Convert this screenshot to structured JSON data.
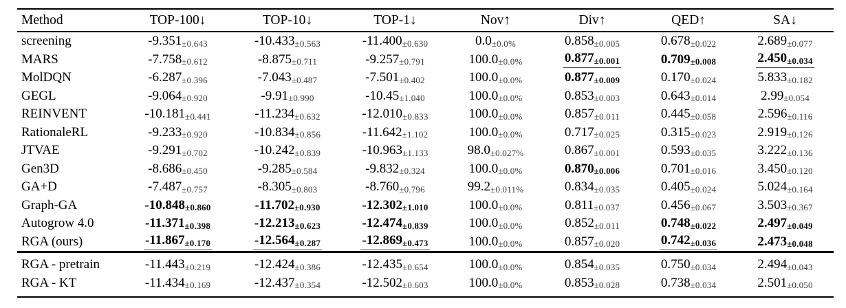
{
  "table": {
    "columns": [
      {
        "key": "method",
        "label": "Method"
      },
      {
        "key": "top100",
        "label": "TOP-100↓"
      },
      {
        "key": "top10",
        "label": "TOP-10↓"
      },
      {
        "key": "top1",
        "label": "TOP-1↓"
      },
      {
        "key": "nov",
        "label": "Nov↑"
      },
      {
        "key": "div",
        "label": "Div↑"
      },
      {
        "key": "qed",
        "label": "QED↑"
      },
      {
        "key": "sa",
        "label": "SA↓"
      }
    ],
    "main_rows": [
      {
        "method": "screening",
        "cells": [
          {
            "value": "-9.351",
            "pm": "0.643",
            "bold": false,
            "underline": false
          },
          {
            "value": "-10.433",
            "pm": "0.563",
            "bold": false,
            "underline": false
          },
          {
            "value": "-11.400",
            "pm": "0.630",
            "bold": false,
            "underline": false
          },
          {
            "value": "0.0",
            "pm": "0.0%",
            "bold": false,
            "underline": false
          },
          {
            "value": "0.858",
            "pm": "0.005",
            "bold": false,
            "underline": false
          },
          {
            "value": "0.678",
            "pm": "0.022",
            "bold": false,
            "underline": false
          },
          {
            "value": "2.689",
            "pm": "0.077",
            "bold": false,
            "underline": false
          }
        ]
      },
      {
        "method": "MARS",
        "cells": [
          {
            "value": "-7.758",
            "pm": "0.612",
            "bold": false,
            "underline": false
          },
          {
            "value": "-8.875",
            "pm": "0.711",
            "bold": false,
            "underline": false
          },
          {
            "value": "-9.257",
            "pm": "0.791",
            "bold": false,
            "underline": false
          },
          {
            "value": "100.0",
            "pm": "0.0%",
            "bold": false,
            "underline": false
          },
          {
            "value": "0.877",
            "pm": "0.001",
            "bold": true,
            "underline": true
          },
          {
            "value": "0.709",
            "pm": "0.008",
            "bold": true,
            "underline": false
          },
          {
            "value": "2.450",
            "pm": "0.034",
            "bold": true,
            "underline": true
          }
        ]
      },
      {
        "method": "MolDQN",
        "cells": [
          {
            "value": "-6.287",
            "pm": "0.396",
            "bold": false,
            "underline": false
          },
          {
            "value": "-7.043",
            "pm": "0.487",
            "bold": false,
            "underline": false
          },
          {
            "value": "-7.501",
            "pm": "0.402",
            "bold": false,
            "underline": false
          },
          {
            "value": "100.0",
            "pm": "0.0%",
            "bold": false,
            "underline": false
          },
          {
            "value": "0.877",
            "pm": "0.009",
            "bold": true,
            "underline": false
          },
          {
            "value": "0.170",
            "pm": "0.024",
            "bold": false,
            "underline": false
          },
          {
            "value": "5.833",
            "pm": "0.182",
            "bold": false,
            "underline": false
          }
        ]
      },
      {
        "method": "GEGL",
        "cells": [
          {
            "value": "-9.064",
            "pm": "0.920",
            "bold": false,
            "underline": false
          },
          {
            "value": "-9.91",
            "pm": "0.990",
            "bold": false,
            "underline": false
          },
          {
            "value": "-10.45",
            "pm": "1.040",
            "bold": false,
            "underline": false
          },
          {
            "value": "100.0",
            "pm": "0.0%",
            "bold": false,
            "underline": false
          },
          {
            "value": "0.853",
            "pm": "0.003",
            "bold": false,
            "underline": false
          },
          {
            "value": "0.643",
            "pm": "0.014",
            "bold": false,
            "underline": false
          },
          {
            "value": "2.99",
            "pm": "0.054",
            "bold": false,
            "underline": false
          }
        ]
      },
      {
        "method": "REINVENT",
        "cells": [
          {
            "value": "-10.181",
            "pm": "0.441",
            "bold": false,
            "underline": false
          },
          {
            "value": "-11.234",
            "pm": "0.632",
            "bold": false,
            "underline": false
          },
          {
            "value": "-12.010",
            "pm": "0.833",
            "bold": false,
            "underline": false
          },
          {
            "value": "100.0",
            "pm": "0.0%",
            "bold": false,
            "underline": false
          },
          {
            "value": "0.857",
            "pm": "0.011",
            "bold": false,
            "underline": false
          },
          {
            "value": "0.445",
            "pm": "0.058",
            "bold": false,
            "underline": false
          },
          {
            "value": "2.596",
            "pm": "0.116",
            "bold": false,
            "underline": false
          }
        ]
      },
      {
        "method": "RationaleRL",
        "cells": [
          {
            "value": "-9.233",
            "pm": "0.920",
            "bold": false,
            "underline": false
          },
          {
            "value": "-10.834",
            "pm": "0.856",
            "bold": false,
            "underline": false
          },
          {
            "value": "-11.642",
            "pm": "1.102",
            "bold": false,
            "underline": false
          },
          {
            "value": "100.0",
            "pm": "0.0%",
            "bold": false,
            "underline": false
          },
          {
            "value": "0.717",
            "pm": "0.025",
            "bold": false,
            "underline": false
          },
          {
            "value": "0.315",
            "pm": "0.023",
            "bold": false,
            "underline": false
          },
          {
            "value": "2.919",
            "pm": "0.126",
            "bold": false,
            "underline": false
          }
        ]
      },
      {
        "method": "JTVAE",
        "cells": [
          {
            "value": "-9.291",
            "pm": "0.702",
            "bold": false,
            "underline": false
          },
          {
            "value": "-10.242",
            "pm": "0.839",
            "bold": false,
            "underline": false
          },
          {
            "value": "-10.963",
            "pm": "1.133",
            "bold": false,
            "underline": false
          },
          {
            "value": "98.0",
            "pm": "0.027%",
            "bold": false,
            "underline": false
          },
          {
            "value": "0.867",
            "pm": "0.001",
            "bold": false,
            "underline": false
          },
          {
            "value": "0.593",
            "pm": "0.035",
            "bold": false,
            "underline": false
          },
          {
            "value": "3.222",
            "pm": "0.136",
            "bold": false,
            "underline": false
          }
        ]
      },
      {
        "method": "Gen3D",
        "cells": [
          {
            "value": "-8.686",
            "pm": "0.450",
            "bold": false,
            "underline": false
          },
          {
            "value": "-9.285",
            "pm": "0.584",
            "bold": false,
            "underline": false
          },
          {
            "value": "-9.832",
            "pm": "0.324",
            "bold": false,
            "underline": false
          },
          {
            "value": "100.0",
            "pm": "0.0%",
            "bold": false,
            "underline": false
          },
          {
            "value": "0.870",
            "pm": "0.006",
            "bold": true,
            "underline": false
          },
          {
            "value": "0.701",
            "pm": "0.016",
            "bold": false,
            "underline": false
          },
          {
            "value": "3.450",
            "pm": "0.120",
            "bold": false,
            "underline": false
          }
        ]
      },
      {
        "method": "GA+D",
        "cells": [
          {
            "value": "-7.487",
            "pm": "0.757",
            "bold": false,
            "underline": false
          },
          {
            "value": "-8.305",
            "pm": "0.803",
            "bold": false,
            "underline": false
          },
          {
            "value": "-8.760",
            "pm": "0.796",
            "bold": false,
            "underline": false
          },
          {
            "value": "99.2",
            "pm": "0.011%",
            "bold": false,
            "underline": false
          },
          {
            "value": "0.834",
            "pm": "0.035",
            "bold": false,
            "underline": false
          },
          {
            "value": "0.405",
            "pm": "0.024",
            "bold": false,
            "underline": false
          },
          {
            "value": "5.024",
            "pm": "0.164",
            "bold": false,
            "underline": false
          }
        ]
      },
      {
        "method": "Graph-GA",
        "cells": [
          {
            "value": "-10.848",
            "pm": "0.860",
            "bold": true,
            "underline": false
          },
          {
            "value": "-11.702",
            "pm": "0.930",
            "bold": true,
            "underline": false
          },
          {
            "value": "-12.302",
            "pm": "1.010",
            "bold": true,
            "underline": false
          },
          {
            "value": "100.0",
            "pm": "0.0%",
            "bold": false,
            "underline": false
          },
          {
            "value": "0.811",
            "pm": "0.037",
            "bold": false,
            "underline": false
          },
          {
            "value": "0.456",
            "pm": "0.067",
            "bold": false,
            "underline": false
          },
          {
            "value": "3.503",
            "pm": "0.367",
            "bold": false,
            "underline": false
          }
        ]
      },
      {
        "method": "Autogrow 4.0",
        "cells": [
          {
            "value": "-11.371",
            "pm": "0.398",
            "bold": true,
            "underline": false
          },
          {
            "value": "-12.213",
            "pm": "0.623",
            "bold": true,
            "underline": false
          },
          {
            "value": "-12.474",
            "pm": "0.839",
            "bold": true,
            "underline": false
          },
          {
            "value": "100.0",
            "pm": "0.0%",
            "bold": false,
            "underline": false
          },
          {
            "value": "0.852",
            "pm": "0.011",
            "bold": false,
            "underline": false
          },
          {
            "value": "0.748",
            "pm": "0.022",
            "bold": true,
            "underline": false
          },
          {
            "value": "2.497",
            "pm": "0.049",
            "bold": true,
            "underline": false
          }
        ]
      },
      {
        "method": "RGA (ours)",
        "cells": [
          {
            "value": "-11.867",
            "pm": "0.170",
            "bold": true,
            "underline": true
          },
          {
            "value": "-12.564",
            "pm": "0.287",
            "bold": true,
            "underline": true
          },
          {
            "value": "-12.869",
            "pm": "0.473",
            "bold": true,
            "underline": true
          },
          {
            "value": "100.0",
            "pm": "0.0%",
            "bold": false,
            "underline": false
          },
          {
            "value": "0.857",
            "pm": "0.020",
            "bold": false,
            "underline": false
          },
          {
            "value": "0.742",
            "pm": "0.036",
            "bold": true,
            "underline": true
          },
          {
            "value": "2.473",
            "pm": "0.048",
            "bold": true,
            "underline": false
          }
        ]
      }
    ],
    "ablation_rows": [
      {
        "method": "RGA - pretrain",
        "cells": [
          {
            "value": "-11.443",
            "pm": "0.219",
            "bold": false,
            "underline": false
          },
          {
            "value": "-12.424",
            "pm": "0.386",
            "bold": false,
            "underline": false
          },
          {
            "value": "-12.435",
            "pm": "0.654",
            "bold": false,
            "underline": false
          },
          {
            "value": "100.0",
            "pm": "0.0%",
            "bold": false,
            "underline": false
          },
          {
            "value": "0.854",
            "pm": "0.035",
            "bold": false,
            "underline": false
          },
          {
            "value": "0.750",
            "pm": "0.034",
            "bold": false,
            "underline": false
          },
          {
            "value": "2.494",
            "pm": "0.043",
            "bold": false,
            "underline": false
          }
        ]
      },
      {
        "method": "RGA - KT",
        "cells": [
          {
            "value": "-11.434",
            "pm": "0.169",
            "bold": false,
            "underline": false
          },
          {
            "value": "-12.437",
            "pm": "0.354",
            "bold": false,
            "underline": false
          },
          {
            "value": "-12.502",
            "pm": "0.603",
            "bold": false,
            "underline": false
          },
          {
            "value": "100.0",
            "pm": "0.0%",
            "bold": false,
            "underline": false
          },
          {
            "value": "0.853",
            "pm": "0.028",
            "bold": false,
            "underline": false
          },
          {
            "value": "0.738",
            "pm": "0.034",
            "bold": false,
            "underline": false
          },
          {
            "value": "2.501",
            "pm": "0.050",
            "bold": false,
            "underline": false
          }
        ]
      }
    ],
    "pm_prefix": "±",
    "colors": {
      "text": "#000000",
      "rule": "#000000",
      "background": "#ffffff"
    }
  }
}
